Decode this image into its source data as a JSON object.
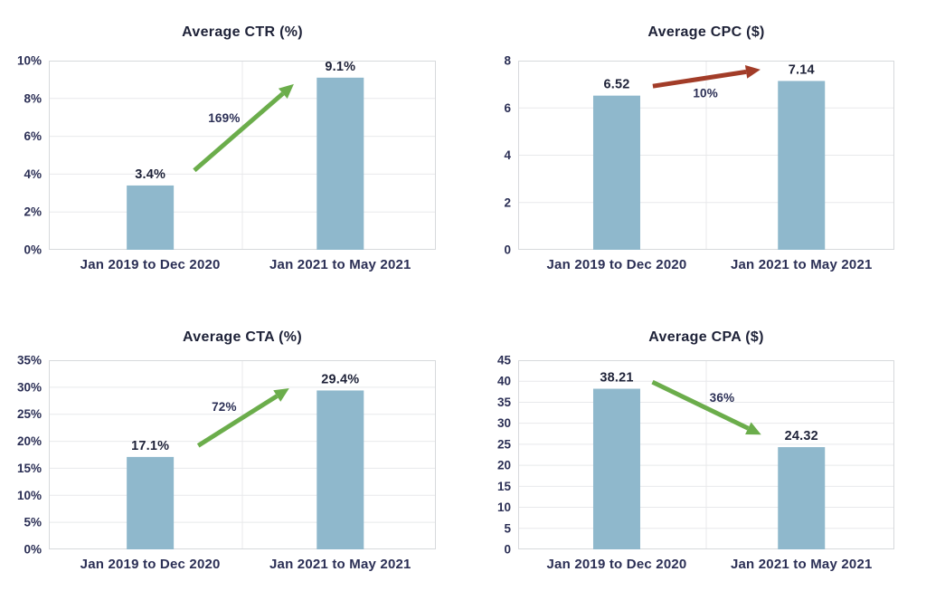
{
  "page": {
    "background": "#ffffff"
  },
  "colors": {
    "bar": "#8fb8cc",
    "grid": "#e8e9eb",
    "frame": "#d7d9dc",
    "text": "#2b2f55",
    "text_dark": "#1e2238",
    "green_arrow": "#6bad4b",
    "red_arrow": "#a23c28"
  },
  "chart_data": [
    {
      "type": "bar",
      "title": "Average CTR (%)",
      "categories": [
        "Jan 2019 to Dec 2020",
        "Jan 2021 to May 2021"
      ],
      "values": [
        3.4,
        9.1
      ],
      "value_labels": [
        "3.4%",
        "9.1%"
      ],
      "ylim": [
        0,
        10
      ],
      "ytick_step": 2,
      "ytick_suffix": "%",
      "grid": "on",
      "legend": "none",
      "annotation": {
        "label": "169%",
        "direction": "up",
        "arrow_color": "#6bad4b",
        "arrow_from": {
          "x_frac": 0.376,
          "y_value": 4.2
        },
        "arrow_to": {
          "x_frac": 0.633,
          "y_value": 8.76
        },
        "label_pos": {
          "x_frac": 0.453,
          "y_value": 6.94
        }
      }
    },
    {
      "type": "bar",
      "title": "Average CPC ($)",
      "categories": [
        "Jan 2019 to Dec 2020",
        "Jan 2021 to May 2021"
      ],
      "values": [
        6.52,
        7.14
      ],
      "value_labels": [
        "6.52",
        "7.14"
      ],
      "ylim": [
        0,
        8
      ],
      "ytick_step": 2,
      "ytick_suffix": "",
      "grid": "on",
      "legend": "none",
      "annotation": {
        "label": "10%",
        "direction": "up",
        "arrow_color": "#a23c28",
        "arrow_from": {
          "x_frac": 0.358,
          "y_value": 6.92
        },
        "arrow_to": {
          "x_frac": 0.644,
          "y_value": 7.62
        },
        "label_pos": {
          "x_frac": 0.498,
          "y_value": 6.6
        }
      }
    },
    {
      "type": "bar",
      "title": "Average CTA (%)",
      "categories": [
        "Jan 2019 to Dec 2020",
        "Jan 2021 to May 2021"
      ],
      "values": [
        17.1,
        29.4
      ],
      "value_labels": [
        "17.1%",
        "29.4%"
      ],
      "ylim": [
        0,
        35
      ],
      "ytick_step": 5,
      "ytick_suffix": "%",
      "grid": "on",
      "legend": "none",
      "annotation": {
        "label": "72%",
        "direction": "up",
        "arrow_color": "#6bad4b",
        "arrow_from": {
          "x_frac": 0.386,
          "y_value": 19.2
        },
        "arrow_to": {
          "x_frac": 0.621,
          "y_value": 29.8
        },
        "label_pos": {
          "x_frac": 0.453,
          "y_value": 26.3
        }
      }
    },
    {
      "type": "bar",
      "title": "Average CPA ($)",
      "categories": [
        "Jan 2019 to Dec 2020",
        "Jan 2021 to May 2021"
      ],
      "values": [
        38.21,
        24.32
      ],
      "value_labels": [
        "38.21",
        "24.32"
      ],
      "ylim": [
        0,
        45
      ],
      "ytick_step": 5,
      "ytick_suffix": "",
      "grid": "on",
      "legend": "none",
      "annotation": {
        "label": "36%",
        "direction": "down",
        "arrow_color": "#6bad4b",
        "arrow_from": {
          "x_frac": 0.357,
          "y_value": 39.8
        },
        "arrow_to": {
          "x_frac": 0.646,
          "y_value": 27.3
        },
        "label_pos": {
          "x_frac": 0.542,
          "y_value": 36.0
        }
      }
    }
  ]
}
